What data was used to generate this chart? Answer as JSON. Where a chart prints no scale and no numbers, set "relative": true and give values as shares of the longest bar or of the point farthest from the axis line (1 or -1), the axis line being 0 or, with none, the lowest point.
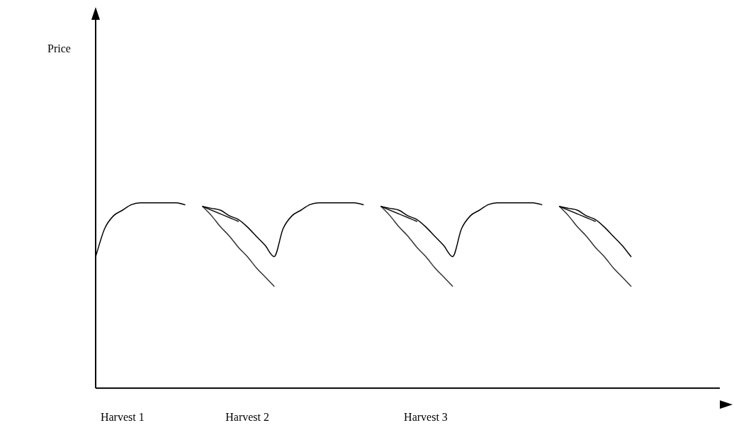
{
  "chart_data": {
    "type": "line",
    "relative": true,
    "annotations": [
      "Price"
    ],
    "marker": "none",
    "categories": [
      null,
      null,
      null,
      "Harvest 1",
      null,
      null,
      null,
      null,
      null,
      null,
      null,
      null,
      null,
      null,
      null,
      null,
      null,
      "Harvest 2",
      null,
      null,
      null,
      null,
      null,
      null,
      null,
      null,
      null,
      null,
      null,
      null,
      null,
      null,
      null,
      null,
      null,
      null,
      null,
      "Harvest 3",
      null,
      null,
      null,
      null,
      null,
      null,
      null,
      null,
      null,
      null,
      null,
      null,
      null,
      null,
      null,
      null,
      null,
      null,
      null,
      null,
      null,
      null,
      null,
      null,
      null,
      null,
      null,
      null,
      null,
      null,
      null,
      null
    ],
    "series": [
      {
        "color": "#000000",
        "values": [
          0.71,
          0.86,
          0.93,
          0.96,
          0.99,
          1,
          1,
          1,
          1,
          1,
          0.99,
          null,
          0.98,
          0.97,
          0.96,
          0.93,
          0.91,
          0.87,
          0.82,
          0.77,
          0.71,
          0.86,
          0.93,
          0.96,
          0.99,
          1,
          1,
          1,
          1,
          1,
          0.99,
          null,
          0.98,
          0.97,
          0.96,
          0.93,
          0.91,
          0.87,
          0.82,
          0.77,
          0.71,
          0.86,
          0.93,
          0.96,
          0.99,
          1,
          1,
          1,
          1,
          1,
          0.99,
          null,
          0.98,
          0.97,
          0.96,
          0.93,
          0.91,
          0.87,
          0.82,
          0.77,
          0.71,
          null,
          null,
          null,
          null,
          null,
          null,
          null,
          null,
          null
        ]
      },
      {
        "color": "#1a1a1a",
        "values": [
          null,
          null,
          null,
          null,
          null,
          null,
          null,
          null,
          null,
          null,
          null,
          null,
          0.98,
          0.96,
          0.94,
          0.92,
          0.9,
          null,
          null,
          null,
          null,
          null,
          null,
          null,
          null,
          null,
          null,
          null,
          null,
          null,
          null,
          null,
          0.98,
          0.96,
          0.94,
          0.92,
          0.9,
          null,
          null,
          null,
          null,
          null,
          null,
          null,
          null,
          null,
          null,
          null,
          null,
          null,
          null,
          null,
          0.98,
          0.96,
          0.94,
          0.92,
          0.9,
          null,
          null,
          null,
          null,
          null,
          null,
          null,
          null,
          null,
          null,
          null,
          null,
          null
        ]
      },
      {
        "color": "#333333",
        "values": [
          null,
          null,
          null,
          null,
          null,
          null,
          null,
          null,
          null,
          null,
          null,
          null,
          0.98,
          0.93,
          0.87,
          0.82,
          0.76,
          0.71,
          0.65,
          0.6,
          0.55,
          null,
          null,
          null,
          null,
          null,
          null,
          null,
          null,
          null,
          null,
          null,
          0.98,
          0.93,
          0.87,
          0.82,
          0.76,
          0.71,
          0.65,
          0.6,
          0.55,
          null,
          null,
          null,
          null,
          null,
          null,
          null,
          null,
          null,
          null,
          null,
          0.98,
          0.93,
          0.87,
          0.82,
          0.76,
          0.71,
          0.65,
          0.6,
          0.55,
          null,
          null,
          null,
          null,
          null,
          null,
          null,
          null,
          null
        ]
      }
    ]
  }
}
